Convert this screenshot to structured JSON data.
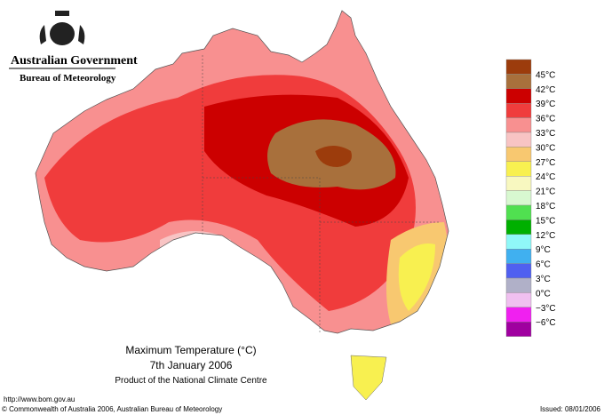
{
  "header": {
    "government": "Australian Government",
    "agency": "Bureau of Meteorology"
  },
  "map": {
    "title": "Maximum Temperature (°C)",
    "date": "7th January 2006",
    "product": "Product of the National Climate Centre"
  },
  "legend": {
    "colors": [
      "#9c3c0c",
      "#a8703c",
      "#cc0000",
      "#f03c3c",
      "#f89090",
      "#f8c4c4",
      "#f8c870",
      "#f8f050",
      "#f8f8c0",
      "#d8f8d0",
      "#50e050",
      "#00b000",
      "#90f8f8",
      "#40b0f0",
      "#5060f0",
      "#b0b0c8",
      "#f0c0f0",
      "#f020f0",
      "#a000a0"
    ],
    "labels": [
      "45°C",
      "42°C",
      "39°C",
      "36°C",
      "33°C",
      "30°C",
      "27°C",
      "24°C",
      "21°C",
      "18°C",
      "15°C",
      "12°C",
      "9°C",
      "6°C",
      "3°C",
      "0°C",
      "−3°C",
      "−6°C"
    ]
  },
  "footer": {
    "url": "http://www.bom.gov.au",
    "copyright": "© Commonwealth of Australia 2006, Australian Bureau of Meteorology",
    "issued": "Issued: 08/01/2006"
  }
}
